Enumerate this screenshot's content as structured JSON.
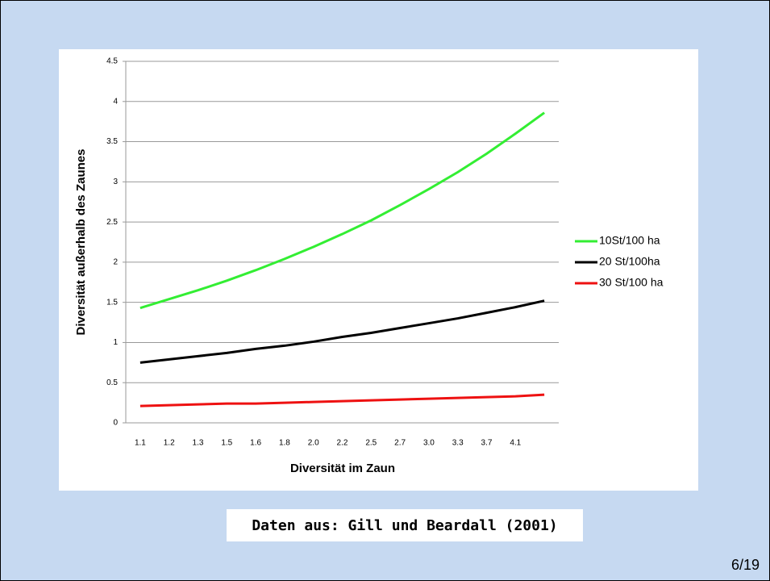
{
  "chart_data": {
    "type": "line",
    "y_label": "Diversität außerhalb des Zaunes",
    "x_label": "Diversität im Zaun",
    "categories": [
      "1.1",
      "1.2",
      "1.3",
      "1.5",
      "1.6",
      "1.8",
      "2.0",
      "2.2",
      "2.5",
      "2.7",
      "3.0",
      "3.3",
      "3.7",
      "4.1",
      null
    ],
    "series": [
      {
        "name": "10St/100 ha",
        "color": "#33ee33",
        "values": [
          1.43,
          1.54,
          1.65,
          1.77,
          1.9,
          2.04,
          2.19,
          2.35,
          2.52,
          2.71,
          2.91,
          3.12,
          3.35,
          3.6,
          3.86
        ]
      },
      {
        "name": "20 St/100ha",
        "color": "#000000",
        "values": [
          0.75,
          0.79,
          0.83,
          0.87,
          0.92,
          0.96,
          1.01,
          1.07,
          1.12,
          1.18,
          1.24,
          1.3,
          1.37,
          1.44,
          1.52
        ]
      },
      {
        "name": "30 St/100 ha",
        "color": "#ee1111",
        "values": [
          0.21,
          0.22,
          0.23,
          0.24,
          0.24,
          0.25,
          0.26,
          0.27,
          0.28,
          0.29,
          0.3,
          0.31,
          0.32,
          0.33,
          0.35
        ]
      }
    ],
    "ylim": [
      0,
      4.5
    ],
    "yticks": [
      0,
      0.5,
      1,
      1.5,
      2,
      2.5,
      3,
      3.5,
      4,
      4.5
    ],
    "grid": true,
    "legend": "right"
  },
  "footer": "Daten aus: Gill und Beardall (2001)",
  "page_number": "6/19"
}
